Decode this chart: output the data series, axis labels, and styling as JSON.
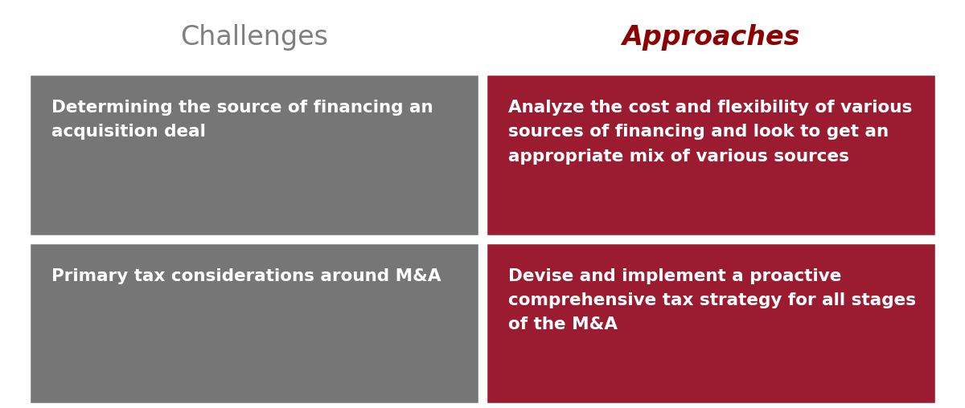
{
  "title_challenges": "Challenges",
  "title_approaches": "Approaches",
  "title_challenges_color": "#7f7f7f",
  "title_approaches_color": "#8B0000",
  "title_fontsize": 24,
  "cell_text_fontsize": 15.5,
  "background_color": "#ffffff",
  "gray_color": "#767676",
  "red_color": "#9B1B30",
  "white": "#ffffff",
  "rows": [
    {
      "challenge": "Determining the source of financing an\nacquisition deal",
      "approach": "Analyze the cost and flexibility of various\nsources of financing and look to get an\nappropriate mix of various sources"
    },
    {
      "challenge": "Primary tax considerations around M&A",
      "approach": "Devise and implement a proactive\ncomprehensive tax strategy for all stages\nof the M&A"
    }
  ]
}
